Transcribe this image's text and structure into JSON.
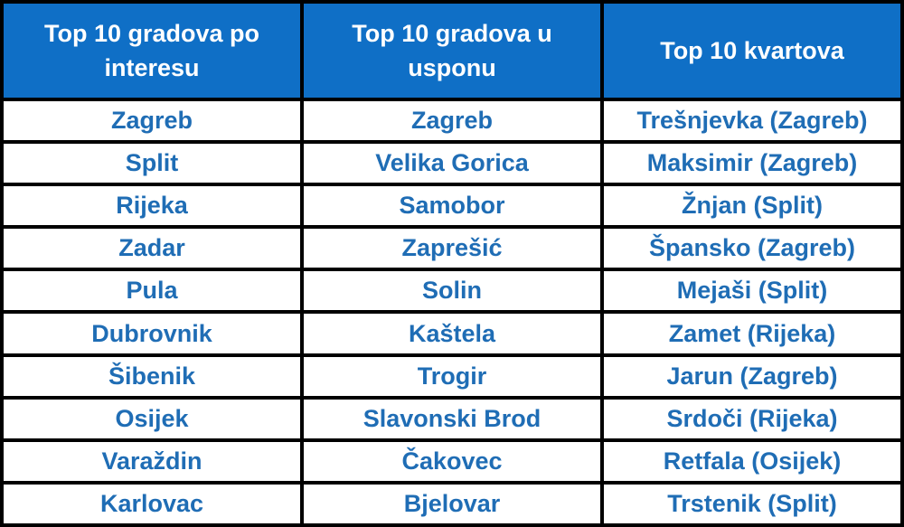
{
  "table": {
    "header": [
      "Top 10 gradova po interesu",
      "Top 10 gradova u usponu",
      "Top 10 kvartova"
    ],
    "rows": [
      [
        "Zagreb",
        "Zagreb",
        "Trešnjevka (Zagreb)"
      ],
      [
        "Split",
        "Velika Gorica",
        "Maksimir (Zagreb)"
      ],
      [
        "Rijeka",
        "Samobor",
        "Žnjan (Split)"
      ],
      [
        "Zadar",
        "Zaprešić",
        "Špansko (Zagreb)"
      ],
      [
        "Pula",
        "Solin",
        "Mejaši (Split)"
      ],
      [
        "Dubrovnik",
        "Kaštela",
        "Zamet (Rijeka)"
      ],
      [
        "Šibenik",
        "Trogir",
        "Jarun (Zagreb)"
      ],
      [
        "Osijek",
        "Slavonski Brod",
        "Srdoči (Rijeka)"
      ],
      [
        "Varaždin",
        "Čakovec",
        "Retfala (Osijek)"
      ],
      [
        "Karlovac",
        "Bjelovar",
        "Trstenik (Split)"
      ]
    ]
  }
}
